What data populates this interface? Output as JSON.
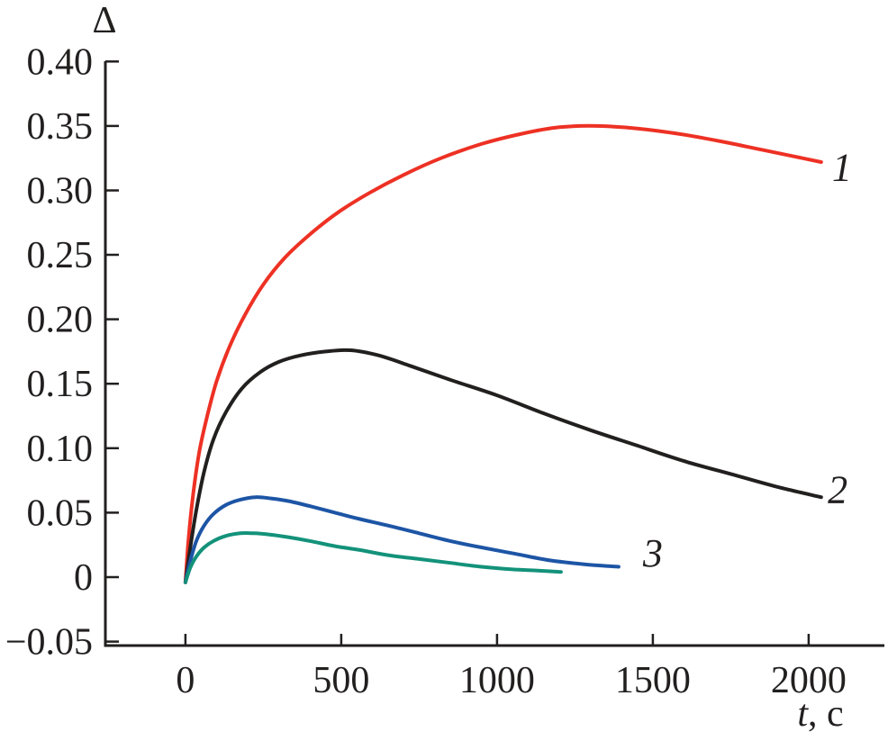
{
  "figure": {
    "background": "#ffffff",
    "axis_color": "#221f1f"
  },
  "chart_data": {
    "type": "line",
    "title": "",
    "ylabel": "Δ",
    "xlabel_italic": "t",
    "xlabel_rest": ", c",
    "grid": false,
    "legend": "none (curves numbered inline)",
    "xlim": [
      -257,
      2243
    ],
    "ylim": [
      -0.0531,
      0.4002
    ],
    "x_ticks": [
      {
        "v": 0,
        "label": "0"
      },
      {
        "v": 500,
        "label": "500"
      },
      {
        "v": 1000,
        "label": "1000"
      },
      {
        "v": 1500,
        "label": "1500"
      },
      {
        "v": 2000,
        "label": "2000"
      }
    ],
    "y_ticks": [
      {
        "v": -0.05,
        "label": "−0.05"
      },
      {
        "v": 0,
        "label": "0"
      },
      {
        "v": 0.05,
        "label": "0.05"
      },
      {
        "v": 0.1,
        "label": "0.10"
      },
      {
        "v": 0.15,
        "label": "0.15"
      },
      {
        "v": 0.2,
        "label": "0.20"
      },
      {
        "v": 0.25,
        "label": "0.25"
      },
      {
        "v": 0.3,
        "label": "0.30"
      },
      {
        "v": 0.35,
        "label": "0.35"
      },
      {
        "v": 0.4,
        "label": "0.40"
      }
    ],
    "series": [
      {
        "label": "1",
        "color": "#ed3124",
        "points": [
          [
            0,
            -0.004
          ],
          [
            10,
            0.03
          ],
          [
            25,
            0.065
          ],
          [
            45,
            0.098
          ],
          [
            70,
            0.125
          ],
          [
            100,
            0.152
          ],
          [
            140,
            0.178
          ],
          [
            190,
            0.203
          ],
          [
            250,
            0.227
          ],
          [
            320,
            0.248
          ],
          [
            400,
            0.266
          ],
          [
            490,
            0.283
          ],
          [
            590,
            0.298
          ],
          [
            700,
            0.312
          ],
          [
            820,
            0.325
          ],
          [
            950,
            0.336
          ],
          [
            1080,
            0.344
          ],
          [
            1200,
            0.349
          ],
          [
            1320,
            0.35
          ],
          [
            1450,
            0.348
          ],
          [
            1580,
            0.344
          ],
          [
            1720,
            0.338
          ],
          [
            1860,
            0.331
          ],
          [
            2040,
            0.322
          ]
        ]
      },
      {
        "label": "2",
        "color": "#221f1f",
        "points": [
          [
            0,
            -0.004
          ],
          [
            15,
            0.022
          ],
          [
            35,
            0.052
          ],
          [
            60,
            0.082
          ],
          [
            90,
            0.107
          ],
          [
            130,
            0.128
          ],
          [
            180,
            0.146
          ],
          [
            240,
            0.159
          ],
          [
            300,
            0.167
          ],
          [
            370,
            0.172
          ],
          [
            450,
            0.175
          ],
          [
            530,
            0.176
          ],
          [
            620,
            0.172
          ],
          [
            720,
            0.164
          ],
          [
            850,
            0.153
          ],
          [
            1000,
            0.141
          ],
          [
            1150,
            0.127
          ],
          [
            1300,
            0.114
          ],
          [
            1450,
            0.102
          ],
          [
            1600,
            0.09
          ],
          [
            1750,
            0.08
          ],
          [
            1900,
            0.07
          ],
          [
            2040,
            0.062
          ]
        ]
      },
      {
        "label": "3",
        "color": "#1d55a5",
        "points": [
          [
            0,
            -0.004
          ],
          [
            15,
            0.012
          ],
          [
            35,
            0.028
          ],
          [
            60,
            0.04
          ],
          [
            90,
            0.049
          ],
          [
            130,
            0.056
          ],
          [
            175,
            0.06
          ],
          [
            225,
            0.062
          ],
          [
            275,
            0.061
          ],
          [
            330,
            0.059
          ],
          [
            400,
            0.055
          ],
          [
            480,
            0.05
          ],
          [
            560,
            0.045
          ],
          [
            650,
            0.04
          ],
          [
            750,
            0.034
          ],
          [
            850,
            0.028
          ],
          [
            950,
            0.023
          ],
          [
            1060,
            0.018
          ],
          [
            1170,
            0.013
          ],
          [
            1280,
            0.01
          ],
          [
            1390,
            0.008
          ]
        ]
      },
      {
        "label": "",
        "color": "#13927a",
        "points": [
          [
            0,
            -0.004
          ],
          [
            15,
            0.007
          ],
          [
            35,
            0.016
          ],
          [
            60,
            0.023
          ],
          [
            90,
            0.028
          ],
          [
            130,
            0.032
          ],
          [
            175,
            0.034
          ],
          [
            220,
            0.034
          ],
          [
            270,
            0.033
          ],
          [
            330,
            0.031
          ],
          [
            400,
            0.028
          ],
          [
            480,
            0.024
          ],
          [
            560,
            0.021
          ],
          [
            650,
            0.017
          ],
          [
            750,
            0.014
          ],
          [
            850,
            0.011
          ],
          [
            950,
            0.008
          ],
          [
            1050,
            0.006
          ],
          [
            1130,
            0.005
          ],
          [
            1205,
            0.004
          ]
        ]
      }
    ],
    "annotations": [
      {
        "text": "1",
        "t": 2107,
        "delta": 0.318
      },
      {
        "text": "2",
        "t": 2093,
        "delta": 0.068
      },
      {
        "text": "3",
        "t": 1500,
        "delta": 0.019
      }
    ]
  }
}
